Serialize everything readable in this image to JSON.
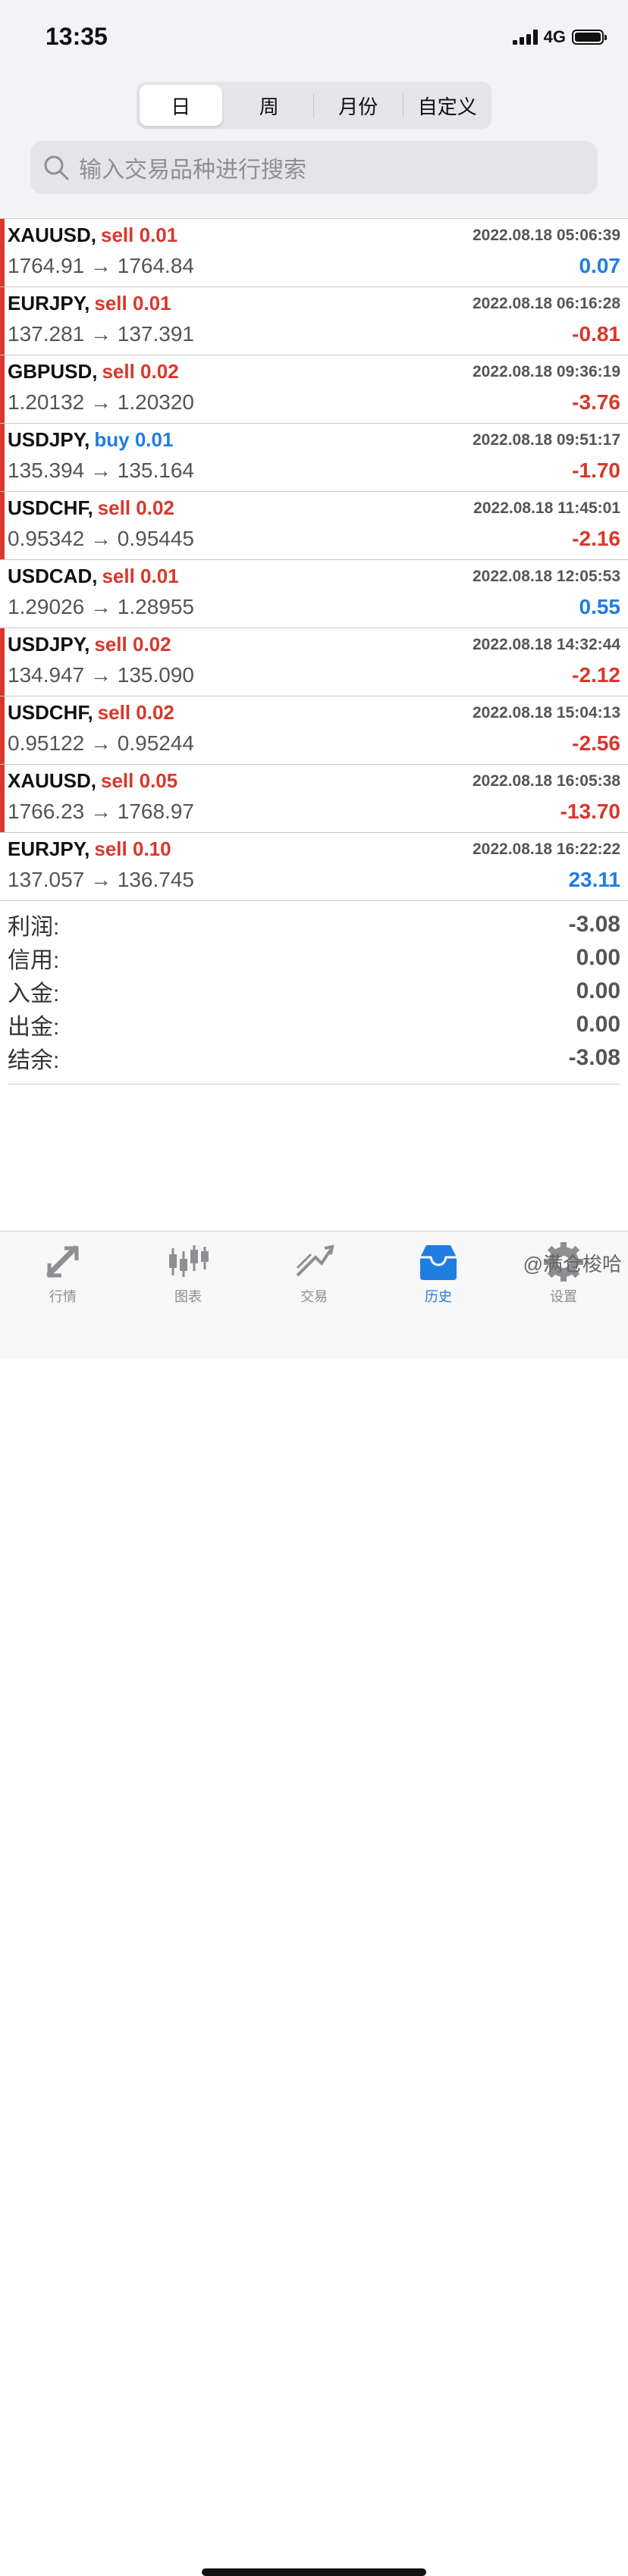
{
  "status": {
    "time": "13:35",
    "network": "4G"
  },
  "segments": [
    "日",
    "周",
    "月份",
    "自定义"
  ],
  "search": {
    "placeholder": "输入交易品种进行搜索"
  },
  "rows": [
    {
      "symbol": "XAUUSD,",
      "side": "sell 0.01",
      "side_color": "red",
      "time": "2022.08.18 05:06:39",
      "prices": "1764.91 → 1764.84",
      "profit": "0.07",
      "profit_color": "blue",
      "marked": true
    },
    {
      "symbol": "EURJPY,",
      "side": "sell 0.01",
      "side_color": "red",
      "time": "2022.08.18 06:16:28",
      "prices": "137.281 → 137.391",
      "profit": "-0.81",
      "profit_color": "red",
      "marked": true
    },
    {
      "symbol": "GBPUSD,",
      "side": "sell 0.02",
      "side_color": "red",
      "time": "2022.08.18 09:36:19",
      "prices": "1.20132 → 1.20320",
      "profit": "-3.76",
      "profit_color": "red",
      "marked": true
    },
    {
      "symbol": "USDJPY,",
      "side": "buy 0.01",
      "side_color": "blue",
      "time": "2022.08.18 09:51:17",
      "prices": "135.394 → 135.164",
      "profit": "-1.70",
      "profit_color": "red",
      "marked": true
    },
    {
      "symbol": "USDCHF,",
      "side": "sell 0.02",
      "side_color": "red",
      "time": "2022.08.18 11:45:01",
      "prices": "0.95342 → 0.95445",
      "profit": "-2.16",
      "profit_color": "red",
      "marked": true
    },
    {
      "symbol": "USDCAD,",
      "side": "sell 0.01",
      "side_color": "red",
      "time": "2022.08.18 12:05:53",
      "prices": "1.29026 → 1.28955",
      "profit": "0.55",
      "profit_color": "blue",
      "marked": false
    },
    {
      "symbol": "USDJPY,",
      "side": "sell 0.02",
      "side_color": "red",
      "time": "2022.08.18 14:32:44",
      "prices": "134.947 → 135.090",
      "profit": "-2.12",
      "profit_color": "red",
      "marked": true
    },
    {
      "symbol": "USDCHF,",
      "side": "sell 0.02",
      "side_color": "red",
      "time": "2022.08.18 15:04:13",
      "prices": "0.95122 → 0.95244",
      "profit": "-2.56",
      "profit_color": "red",
      "marked": true
    },
    {
      "symbol": "XAUUSD,",
      "side": "sell 0.05",
      "side_color": "red",
      "time": "2022.08.18 16:05:38",
      "prices": "1766.23 → 1768.97",
      "profit": "-13.70",
      "profit_color": "red",
      "marked": true
    },
    {
      "symbol": "EURJPY,",
      "side": "sell 0.10",
      "side_color": "red",
      "time": "2022.08.18 16:22:22",
      "prices": "137.057 → 136.745",
      "profit": "23.11",
      "profit_color": "blue",
      "marked": false
    }
  ],
  "summary": [
    {
      "label": "利润:",
      "value": "-3.08"
    },
    {
      "label": "信用:",
      "value": "0.00"
    },
    {
      "label": "入金:",
      "value": "0.00"
    },
    {
      "label": "出金:",
      "value": "0.00"
    },
    {
      "label": "结余:",
      "value": "-3.08"
    }
  ],
  "tabs": [
    {
      "label": "行情",
      "icon": "quotes-icon",
      "active": false
    },
    {
      "label": "图表",
      "icon": "chart-icon",
      "active": false
    },
    {
      "label": "交易",
      "icon": "trade-icon",
      "active": false
    },
    {
      "label": "历史",
      "icon": "history-icon",
      "active": true
    },
    {
      "label": "设置",
      "icon": "settings-icon",
      "active": false
    }
  ],
  "watermark": "@满仓梭哈",
  "colors": {
    "red": "#d9372b",
    "blue": "#1f7ee0",
    "gray": "#8e8e93"
  }
}
